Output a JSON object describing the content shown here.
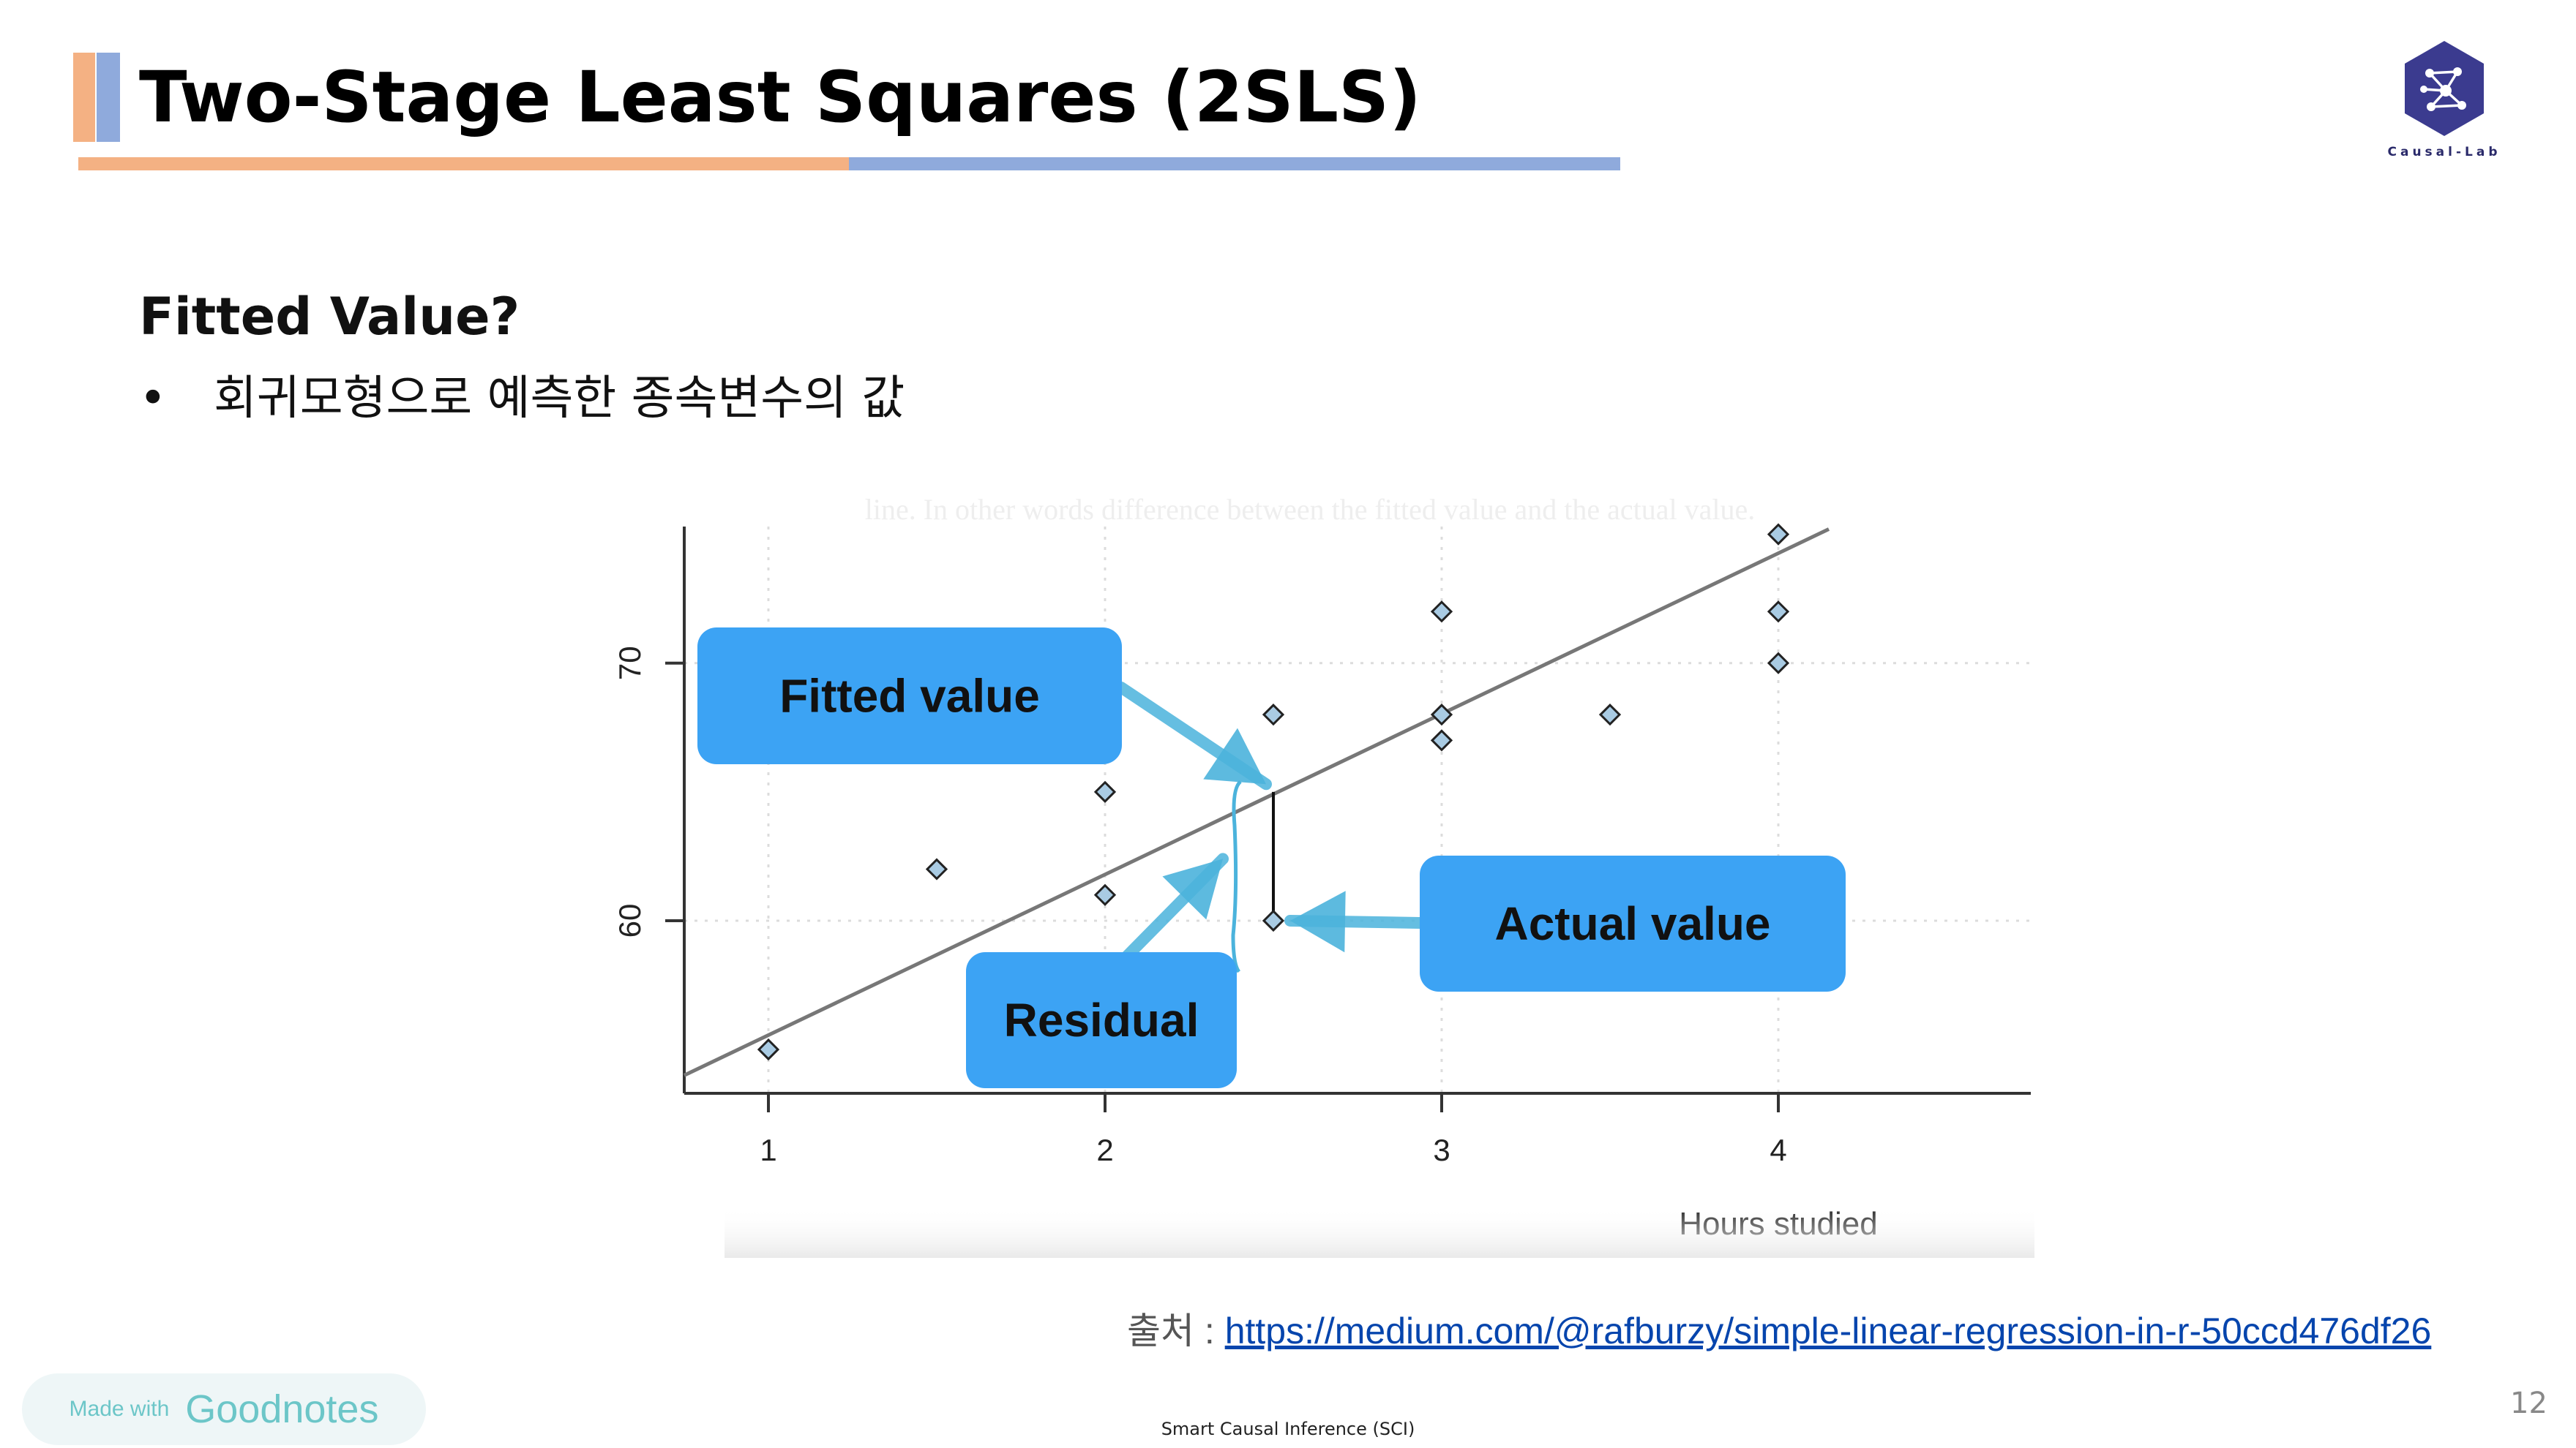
{
  "slide": {
    "title": "Two-Stage Least Squares (2SLS)",
    "logo_text": "Causal-Lab",
    "heading": "Fitted Value?",
    "bullet_marker": "•",
    "bullet": "회귀모형으로 예측한 종속변수의 값",
    "source_label": "출처 : ",
    "source_url": "https://medium.com/@rafburzy/simple-linear-regression-in-r-50ccd476df26",
    "page_number": "12",
    "footer": "Smart Causal Inference (SCI)",
    "goodnotes_small": "Made with",
    "goodnotes_big": "Goodnotes"
  },
  "colors": {
    "accent_orange": "#F4B183",
    "accent_blue": "#8FAADC",
    "callout_blue": "#3CA3F4",
    "arrow_blue": "#4BB3DC",
    "point_fill": "#A9CBE3",
    "logo_purple": "#3B3B8F"
  },
  "chart_data": {
    "type": "scatter",
    "top_text": "line. In other words difference between the fitted value and the actual value.",
    "xlabel": "Hours studied",
    "ylabel": "",
    "xlim": [
      0.75,
      4.75
    ],
    "ylim": [
      53.3,
      75.3
    ],
    "x_ticks": [
      1,
      2,
      3,
      4
    ],
    "y_ticks": [
      60,
      70
    ],
    "grid": true,
    "points": [
      {
        "x": 1,
        "y": 55
      },
      {
        "x": 1.5,
        "y": 62
      },
      {
        "x": 2,
        "y": 61
      },
      {
        "x": 2,
        "y": 65
      },
      {
        "x": 2.5,
        "y": 60
      },
      {
        "x": 2.5,
        "y": 68
      },
      {
        "x": 3,
        "y": 67
      },
      {
        "x": 3,
        "y": 68
      },
      {
        "x": 3,
        "y": 72
      },
      {
        "x": 3.5,
        "y": 68
      },
      {
        "x": 4,
        "y": 70
      },
      {
        "x": 4,
        "y": 72
      },
      {
        "x": 4,
        "y": 75
      }
    ],
    "regression_line": {
      "x": [
        0.75,
        4.15
      ],
      "y": [
        54.0,
        75.2
      ]
    },
    "residual": {
      "x": 2.5,
      "y_fitted": 65,
      "y_actual": 60
    },
    "annotations": [
      {
        "label": "Fitted value",
        "points_to": {
          "x": 2.5,
          "y": 65.3
        }
      },
      {
        "label": "Actual value",
        "points_to": {
          "x": 2.55,
          "y": 60
        }
      },
      {
        "label": "Residual",
        "points_to": {
          "x": 2.35,
          "y": 62.4
        }
      }
    ]
  }
}
